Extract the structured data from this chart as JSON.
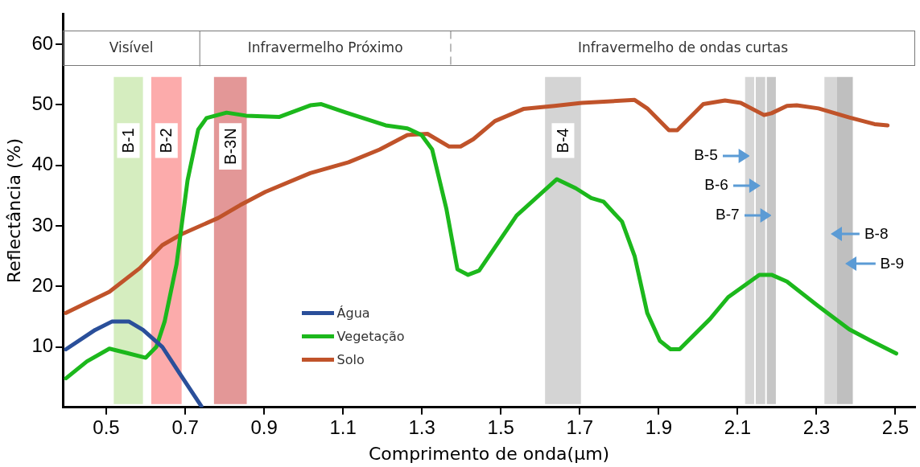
{
  "chart_data": {
    "type": "line",
    "xlabel": "Comprimento de onda(μm)",
    "ylabel": "Reflectância (%)",
    "xlim": [
      0.39,
      2.55
    ],
    "xticks": [
      0.5,
      0.7,
      0.9,
      1.1,
      1.3,
      1.5,
      1.7,
      1.9,
      2.1,
      2.3,
      2.5
    ],
    "ylim": [
      0,
      65
    ],
    "yticks": [
      10,
      20,
      30,
      40,
      50,
      60
    ],
    "legend": "bottom",
    "series": [
      {
        "name": "Água",
        "color": "#2a4f9a",
        "x": [
          0.398,
          0.472,
          0.515,
          0.557,
          0.593,
          0.642,
          0.684,
          0.741
        ],
        "values": [
          9.6,
          12.8,
          14.2,
          14.2,
          12.8,
          10,
          5.8,
          0.2
        ]
      },
      {
        "name": "Vegetação",
        "color": "#1cb81c",
        "x": [
          0.398,
          0.451,
          0.508,
          0.551,
          0.6,
          0.627,
          0.648,
          0.678,
          0.706,
          0.733,
          0.754,
          0.805,
          0.854,
          0.939,
          1.017,
          1.045,
          1.108,
          1.208,
          1.263,
          1.299,
          1.326,
          1.362,
          1.39,
          1.417,
          1.445,
          1.54,
          1.642,
          1.69,
          1.729,
          1.76,
          1.807,
          1.839,
          1.871,
          1.903,
          1.93,
          1.953,
          2.03,
          2.076,
          2.155,
          2.186,
          2.225,
          2.305,
          2.383,
          2.438,
          2.502
        ],
        "values": [
          4.8,
          7.6,
          9.7,
          9,
          8.2,
          10,
          14.2,
          23.6,
          37.5,
          45.9,
          47.8,
          48.7,
          48.2,
          48,
          49.9,
          50.1,
          48.7,
          46.6,
          46.1,
          45,
          42.6,
          32.8,
          22.8,
          21.9,
          22.6,
          31.7,
          37.7,
          36.2,
          34.6,
          34,
          30.7,
          25,
          15.6,
          11,
          9.6,
          9.6,
          14.6,
          18.2,
          21.9,
          21.9,
          20.8,
          16.7,
          12.9,
          11,
          8.9
        ]
      },
      {
        "name": "Solo",
        "color": "#c0532a",
        "x": [
          0.398,
          0.508,
          0.585,
          0.642,
          0.69,
          0.784,
          0.839,
          0.903,
          1.017,
          1.114,
          1.193,
          1.263,
          1.314,
          1.369,
          1.398,
          1.43,
          1.485,
          1.557,
          1.636,
          1.705,
          1.839,
          1.871,
          1.926,
          1.947,
          2.013,
          2.068,
          2.108,
          2.167,
          2.186,
          2.225,
          2.25,
          2.305,
          2.383,
          2.447,
          2.48
        ],
        "values": [
          15.6,
          19.1,
          23,
          26.8,
          28.6,
          31.3,
          33.4,
          35.6,
          38.7,
          40.5,
          42.6,
          45,
          45.2,
          43.1,
          43.1,
          44.3,
          47.3,
          49.3,
          49.8,
          50.3,
          50.8,
          49.4,
          45.8,
          45.8,
          50.1,
          50.7,
          50.3,
          48.3,
          48.6,
          49.8,
          49.9,
          49.4,
          47.9,
          46.8,
          46.6
        ]
      }
    ],
    "annotations": [
      "Visível",
      "Infravermelho Próximo",
      "Infravermelho de ondas curtas"
    ],
    "ref_lines": [
      {
        "axis": "x",
        "value": 0.737,
        "color": "#777777",
        "line_style": "solid"
      },
      {
        "axis": "x",
        "value": 1.373,
        "color": "#777777",
        "line_style": "dashed"
      }
    ],
    "bands": [
      {
        "axis": "x",
        "from": 0.519,
        "to": 0.593,
        "label": "B-1",
        "color": "#c5e6a6"
      },
      {
        "axis": "x",
        "from": 0.614,
        "to": 0.691,
        "label": "B-2",
        "color": "#fb8a8a"
      },
      {
        "axis": "x",
        "from": 0.773,
        "to": 0.856,
        "label": "B-3N",
        "color": "#d86f6f"
      },
      {
        "axis": "x",
        "from": 1.612,
        "to": 1.703,
        "label": "B-4",
        "color": "#c4c4c4"
      },
      {
        "axis": "x",
        "from": 2.119,
        "to": 2.142,
        "label": "B-5",
        "color": "#c6c6c6"
      },
      {
        "axis": "x",
        "from": 2.146,
        "to": 2.17,
        "label": "B-6",
        "color": "#bcbcbc"
      },
      {
        "axis": "x",
        "from": 2.174,
        "to": 2.197,
        "label": "B-7",
        "color": "#b0b0b0"
      },
      {
        "axis": "x",
        "from": 2.32,
        "to": 2.352,
        "label": "B-8",
        "color": "#c6c6c6"
      },
      {
        "axis": "x",
        "from": 2.352,
        "to": 2.392,
        "label": "B-9",
        "color": "#a6a6a6"
      }
    ]
  }
}
